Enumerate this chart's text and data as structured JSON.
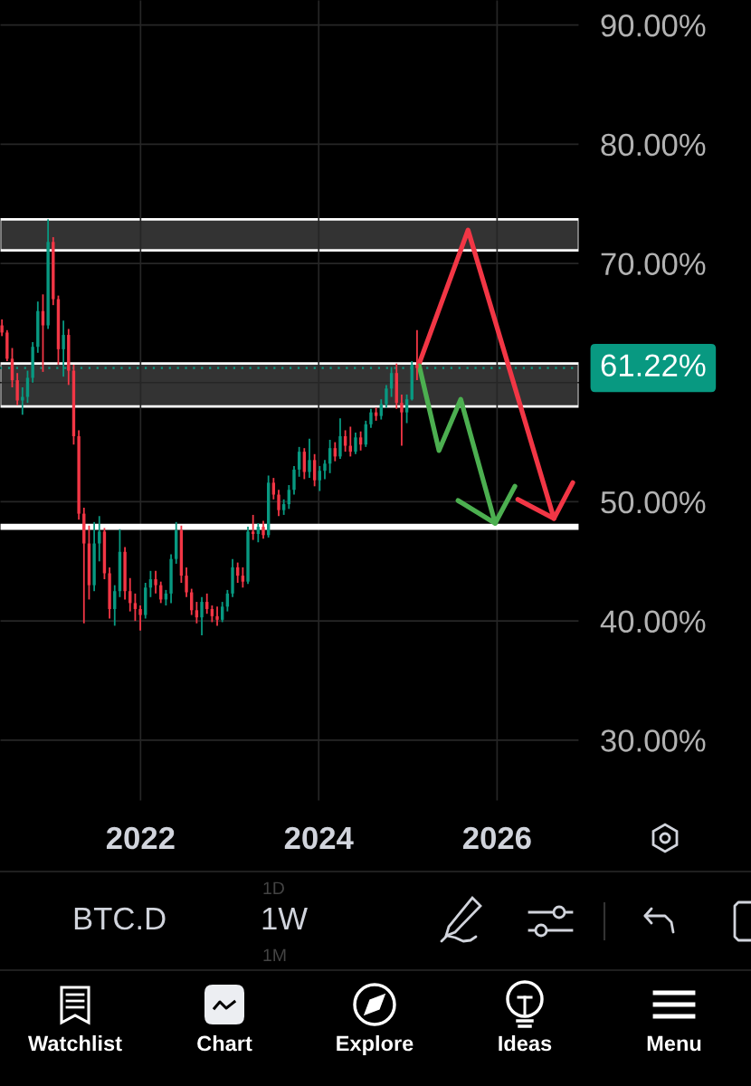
{
  "chart_data": {
    "type": "candlestick",
    "title": "BTC.D",
    "subtitle": "1W",
    "x": [
      "2020-06-12",
      "2020-07-03",
      "2020-07-24",
      "2020-08-14",
      "2020-09-04",
      "2020-09-25",
      "2020-10-16",
      "2020-11-06",
      "2020-11-27",
      "2020-12-18",
      "2021-01-08",
      "2021-01-29",
      "2021-02-19",
      "2021-03-12",
      "2021-04-02",
      "2021-04-23",
      "2021-05-14",
      "2021-06-04",
      "2021-06-25",
      "2021-07-16",
      "2021-08-06",
      "2021-08-27",
      "2021-09-17",
      "2021-10-08",
      "2021-10-29",
      "2021-11-19",
      "2021-12-10",
      "2021-12-31",
      "2022-01-21",
      "2022-02-11",
      "2022-03-04",
      "2022-03-25",
      "2022-04-15",
      "2022-05-06",
      "2022-05-27",
      "2022-06-17",
      "2022-07-08",
      "2022-07-29",
      "2022-08-19",
      "2022-09-09",
      "2022-09-30",
      "2022-10-21",
      "2022-11-11",
      "2022-12-02",
      "2022-12-23",
      "2023-01-13",
      "2023-02-03",
      "2023-02-24",
      "2023-03-17",
      "2023-04-07",
      "2023-04-28",
      "2023-05-19",
      "2023-06-09",
      "2023-06-30",
      "2023-07-21",
      "2023-08-11",
      "2023-09-01",
      "2023-09-22",
      "2023-10-13",
      "2023-11-03",
      "2023-11-24",
      "2023-12-15",
      "2024-01-05",
      "2024-01-26",
      "2024-02-16",
      "2024-03-08",
      "2024-03-29",
      "2024-04-19",
      "2024-05-10",
      "2024-05-31",
      "2024-06-21",
      "2024-07-12",
      "2024-08-02",
      "2024-08-23",
      "2024-09-13",
      "2024-10-04",
      "2024-10-25",
      "2024-11-15",
      "2024-12-06",
      "2024-12-27",
      "2025-01-17",
      "2025-02-07"
    ],
    "ohlc": [
      [
        64.8,
        65.3,
        63.9,
        64.2
      ],
      [
        64.2,
        64.4,
        61.8,
        62.0
      ],
      [
        62.0,
        62.9,
        59.6,
        60.2
      ],
      [
        60.2,
        60.8,
        58.1,
        58.5
      ],
      [
        58.5,
        59.6,
        57.3,
        58.8
      ],
      [
        58.8,
        61.0,
        58.3,
        60.4
      ],
      [
        60.4,
        63.4,
        60.0,
        63.0
      ],
      [
        63.0,
        66.8,
        62.5,
        66.0
      ],
      [
        66.0,
        67.4,
        60.9,
        64.8
      ],
      [
        64.8,
        73.7,
        64.5,
        71.8
      ],
      [
        71.8,
        72.2,
        66.5,
        67.0
      ],
      [
        67.0,
        67.3,
        61.5,
        62.8
      ],
      [
        62.8,
        65.2,
        60.5,
        64.0
      ],
      [
        64.0,
        64.5,
        59.8,
        61.0
      ],
      [
        61.0,
        61.5,
        54.8,
        55.5
      ],
      [
        55.5,
        56.0,
        48.5,
        49.0
      ],
      [
        49.0,
        49.5,
        39.8,
        46.5
      ],
      [
        46.5,
        48.0,
        41.8,
        43.0
      ],
      [
        43.0,
        48.3,
        42.5,
        46.5
      ],
      [
        46.5,
        48.8,
        45.0,
        47.5
      ],
      [
        47.5,
        47.8,
        43.5,
        44.0
      ],
      [
        44.0,
        44.5,
        40.2,
        41.0
      ],
      [
        41.0,
        43.0,
        39.6,
        42.5
      ],
      [
        42.5,
        47.7,
        42.0,
        45.8
      ],
      [
        45.8,
        46.2,
        41.8,
        42.5
      ],
      [
        42.5,
        43.6,
        40.8,
        41.5
      ],
      [
        41.5,
        42.3,
        40.0,
        41.0
      ],
      [
        41.0,
        41.3,
        39.2,
        40.5
      ],
      [
        40.5,
        43.2,
        40.2,
        42.8
      ],
      [
        42.8,
        44.2,
        42.0,
        43.5
      ],
      [
        43.5,
        44.2,
        42.3,
        43.0
      ],
      [
        43.0,
        43.3,
        41.5,
        41.8
      ],
      [
        41.8,
        42.6,
        41.3,
        42.3
      ],
      [
        42.3,
        45.6,
        41.5,
        45.2
      ],
      [
        45.2,
        48.3,
        44.8,
        47.6
      ],
      [
        47.6,
        48.0,
        43.2,
        43.8
      ],
      [
        43.8,
        44.5,
        42.0,
        42.4
      ],
      [
        42.4,
        42.7,
        40.5,
        40.9
      ],
      [
        40.9,
        41.6,
        39.8,
        40.3
      ],
      [
        40.3,
        42.0,
        38.8,
        41.6
      ],
      [
        41.6,
        42.3,
        40.6,
        41.0
      ],
      [
        41.0,
        41.3,
        39.9,
        40.4
      ],
      [
        40.4,
        41.2,
        39.6,
        40.1
      ],
      [
        40.1,
        41.6,
        39.9,
        41.2
      ],
      [
        41.2,
        42.6,
        40.8,
        42.3
      ],
      [
        42.3,
        45.2,
        42.0,
        44.5
      ],
      [
        44.5,
        44.9,
        43.2,
        43.8
      ],
      [
        43.8,
        44.5,
        42.8,
        43.3
      ],
      [
        43.3,
        47.9,
        43.1,
        47.5
      ],
      [
        47.5,
        48.9,
        46.8,
        47.3
      ],
      [
        47.3,
        48.2,
        46.6,
        47.9
      ],
      [
        47.9,
        48.4,
        46.9,
        47.2
      ],
      [
        47.2,
        52.2,
        47.0,
        51.6
      ],
      [
        51.6,
        52.0,
        50.2,
        50.6
      ],
      [
        50.6,
        51.0,
        48.8,
        49.3
      ],
      [
        49.3,
        50.2,
        48.9,
        49.8
      ],
      [
        49.8,
        51.4,
        49.4,
        51.0
      ],
      [
        51.0,
        53.0,
        50.6,
        52.7
      ],
      [
        52.7,
        54.6,
        52.1,
        54.2
      ],
      [
        54.2,
        54.5,
        51.9,
        52.5
      ],
      [
        52.5,
        55.3,
        52.0,
        53.5
      ],
      [
        53.5,
        54.0,
        51.3,
        51.8
      ],
      [
        51.8,
        53.0,
        50.9,
        52.6
      ],
      [
        52.6,
        53.5,
        51.9,
        53.2
      ],
      [
        53.2,
        55.2,
        52.4,
        54.5
      ],
      [
        54.5,
        55.0,
        53.4,
        53.8
      ],
      [
        53.8,
        57.0,
        53.6,
        55.5
      ],
      [
        55.5,
        56.0,
        54.2,
        54.7
      ],
      [
        54.7,
        56.3,
        53.8,
        54.2
      ],
      [
        54.2,
        55.8,
        54.0,
        55.4
      ],
      [
        55.4,
        55.9,
        54.3,
        54.8
      ],
      [
        54.8,
        56.8,
        54.6,
        56.5
      ],
      [
        56.5,
        57.8,
        56.2,
        57.5
      ],
      [
        57.5,
        57.9,
        56.8,
        57.2
      ],
      [
        57.2,
        58.6,
        56.9,
        58.2
      ],
      [
        58.2,
        59.8,
        57.9,
        59.5
      ],
      [
        59.5,
        61.3,
        58.8,
        60.8
      ],
      [
        60.8,
        61.6,
        57.8,
        58.3
      ],
      [
        58.3,
        59.0,
        54.7,
        57.5
      ],
      [
        57.5,
        59.0,
        56.6,
        58.6
      ],
      [
        58.6,
        61.8,
        58.5,
        61.5
      ],
      [
        61.5,
        64.4,
        60.2,
        61.22
      ]
    ],
    "colors": [
      "#f23645",
      "#f23645",
      "#f23645",
      "#f23645",
      "#089981",
      "#089981",
      "#089981",
      "#089981",
      "#f23645",
      "#089981",
      "#f23645",
      "#f23645",
      "#089981",
      "#f23645",
      "#f23645",
      "#f23645",
      "#f23645",
      "#f23645",
      "#089981",
      "#089981",
      "#f23645",
      "#f23645",
      "#089981",
      "#089981",
      "#f23645",
      "#f23645",
      "#f23645",
      "#f23645",
      "#089981",
      "#089981",
      "#f23645",
      "#f23645",
      "#089981",
      "#089981",
      "#089981",
      "#f23645",
      "#f23645",
      "#f23645",
      "#f23645",
      "#089981",
      "#f23645",
      "#f23645",
      "#f23645",
      "#089981",
      "#089981",
      "#089981",
      "#f23645",
      "#f23645",
      "#089981",
      "#f23645",
      "#089981",
      "#f23645",
      "#089981",
      "#f23645",
      "#f23645",
      "#089981",
      "#089981",
      "#089981",
      "#089981",
      "#f23645",
      "#089981",
      "#f23645",
      "#089981",
      "#089981",
      "#089981",
      "#f23645",
      "#089981",
      "#f23645",
      "#f23645",
      "#089981",
      "#f23645",
      "#089981",
      "#089981",
      "#f23645",
      "#089981",
      "#089981",
      "#089981",
      "#f23645",
      "#f23645",
      "#089981",
      "#089981",
      "#f23645"
    ],
    "series": [
      {
        "type": "line",
        "color": "#f23645",
        "x": [
          "2025-02-16",
          "2025-09-04",
          "2026-08-22"
        ],
        "values": [
          61.6,
          72.8,
          48.6
        ]
      },
      {
        "type": "line",
        "color": "#f23645",
        "x": [
          "2026-03-27",
          "2026-08-22",
          "2026-11-07"
        ],
        "values": [
          50.2,
          48.6,
          51.6
        ]
      },
      {
        "type": "line",
        "color": "#4caf50",
        "x": [
          "2025-02-16",
          "2025-05-08",
          "2025-08-05",
          "2025-12-24"
        ],
        "values": [
          61.4,
          54.3,
          58.6,
          48.2
        ]
      },
      {
        "type": "line",
        "color": "#4caf50",
        "x": [
          "2025-07-25",
          "2025-12-24",
          "2026-03-15"
        ],
        "values": [
          50.1,
          48.2,
          51.3
        ]
      }
    ],
    "xlim": [
      "2020-06-04",
      "2026-12-03"
    ],
    "ylim": [
      24.9,
      92.1
    ],
    "xticks": [
      {
        "value": "2022-01-01",
        "label": "2022"
      },
      {
        "value": "2024-01-01",
        "label": "2024"
      },
      {
        "value": "2026-01-01",
        "label": "2026"
      }
    ],
    "yticks": [
      {
        "value": 30,
        "label": "30.00%"
      },
      {
        "value": 40,
        "label": "40.00%"
      },
      {
        "value": 50,
        "label": "50.00%"
      },
      {
        "value": 60,
        "label": null
      },
      {
        "value": 70,
        "label": "70.00%"
      },
      {
        "value": 80,
        "label": "80.00%"
      },
      {
        "value": 90,
        "label": "90.00%"
      }
    ],
    "grid": true,
    "bands": [
      {
        "axis": "y",
        "from": 71.1,
        "to": 73.7,
        "color": "#333333"
      },
      {
        "axis": "y",
        "from": 58.0,
        "to": 61.6,
        "color": "#333333"
      }
    ],
    "ref_lines": [
      {
        "axis": "y",
        "value": 47.9,
        "color": "#ffffff",
        "line_style": "solid"
      },
      {
        "axis": "y",
        "value": 61.22,
        "label": "61.22%",
        "color": "#089981",
        "line_style": "dotted"
      }
    ],
    "annotations": [
      "1D",
      "1M",
      "Watchlist",
      "Chart",
      "Explore",
      "Ideas",
      "Menu"
    ]
  }
}
